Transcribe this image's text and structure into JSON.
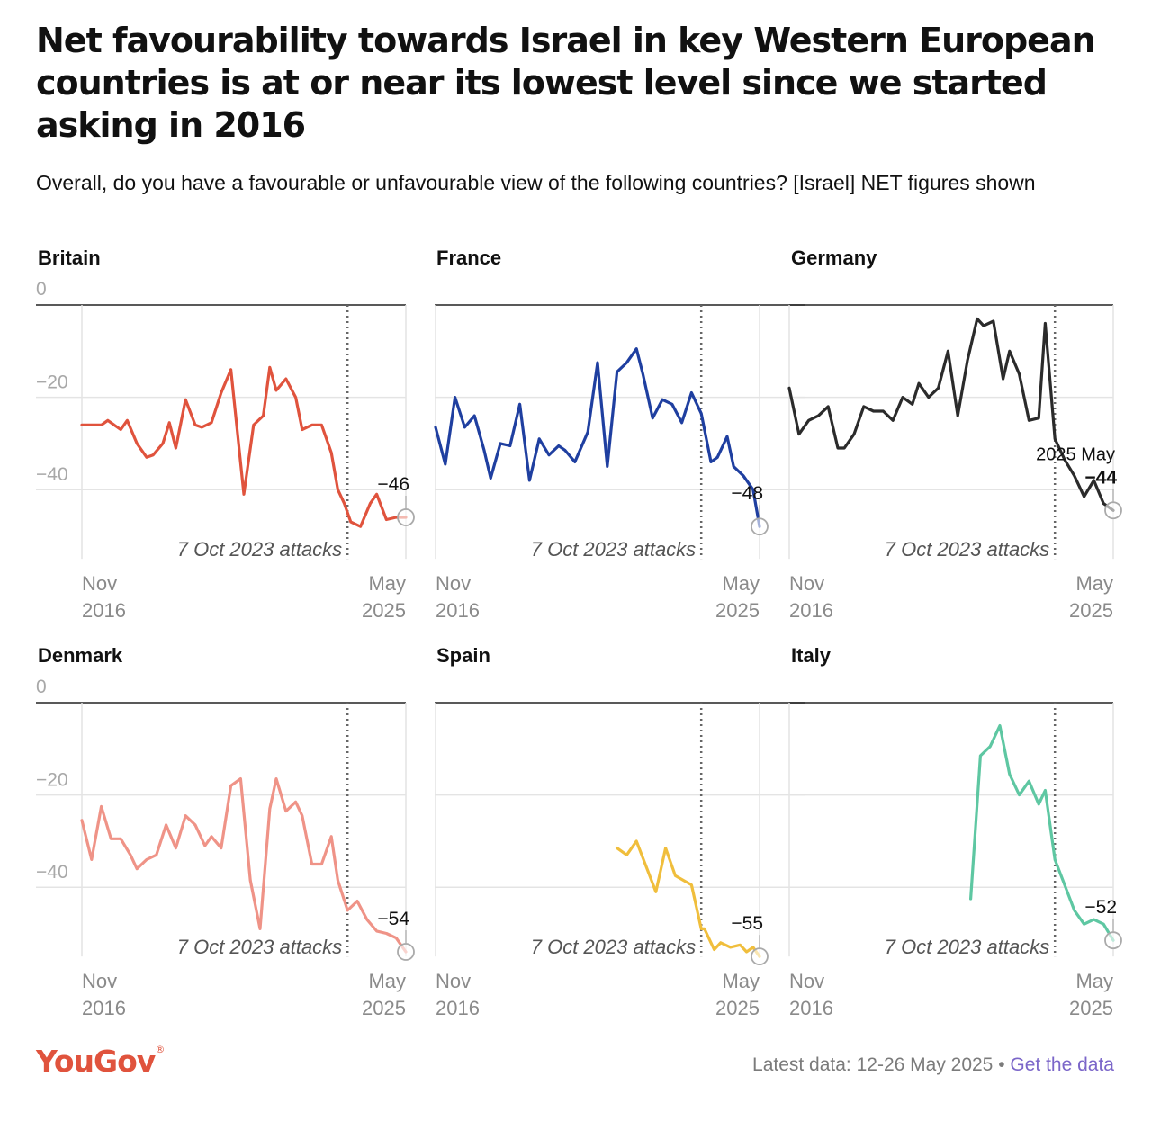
{
  "title": "Net favourability towards Israel in key Western European countries is at or near its lowest level since we started asking in 2016",
  "subtitle": "Overall, do you have a favourable or unfavourable view of the following countries? [Israel] NET figures shown",
  "footer": {
    "logo": "YouGov",
    "latest": "Latest data: 12-26 May 2025",
    "separator": " • ",
    "link": "Get the data"
  },
  "chart_data": [
    {
      "type": "line",
      "title": "Britain",
      "color": "#e0533d",
      "ylim": [
        -55,
        0
      ],
      "yticks": [
        0,
        -20,
        -40
      ],
      "x_start_label": [
        "Nov",
        "2016"
      ],
      "x_end_label": [
        "May",
        "2025"
      ],
      "event_label": "7 Oct 2023 attacks",
      "event_x": 0.82,
      "last_value_label": "−46",
      "show_ytick_labels": true,
      "x": [
        0,
        0.03,
        0.06,
        0.08,
        0.12,
        0.14,
        0.17,
        0.2,
        0.22,
        0.25,
        0.27,
        0.29,
        0.32,
        0.35,
        0.37,
        0.4,
        0.43,
        0.46,
        0.5,
        0.53,
        0.56,
        0.58,
        0.6,
        0.63,
        0.66,
        0.68,
        0.71,
        0.74,
        0.77,
        0.79,
        0.81,
        0.83,
        0.86,
        0.89,
        0.91,
        0.94,
        0.97,
        1.0
      ],
      "values": [
        -26,
        -26,
        -26,
        -25,
        -27,
        -25,
        -30,
        -33,
        -32.5,
        -30,
        -25.5,
        -31,
        -20.5,
        -26,
        -26.5,
        -25.5,
        -19,
        -14,
        -41,
        -26,
        -24,
        -13.5,
        -18.5,
        -16,
        -20,
        -27,
        -26,
        -26,
        -32,
        -40,
        -43,
        -47,
        -48,
        -43,
        -41,
        -46.5,
        -46,
        -46
      ],
      "skip_last": 2
    },
    {
      "type": "line",
      "title": "France",
      "color": "#1f3fa0",
      "ylim": [
        -55,
        0
      ],
      "yticks": [
        0,
        -20,
        -40
      ],
      "x_start_label": [
        "Nov",
        "2016"
      ],
      "x_end_label": [
        "May",
        "2025"
      ],
      "event_label": "7 Oct 2023 attacks",
      "event_x": 0.82,
      "last_value_label": "−48",
      "show_ytick_labels": false,
      "x": [
        0,
        0.03,
        0.06,
        0.09,
        0.12,
        0.15,
        0.17,
        0.2,
        0.23,
        0.26,
        0.29,
        0.32,
        0.35,
        0.38,
        0.4,
        0.43,
        0.47,
        0.5,
        0.53,
        0.56,
        0.59,
        0.62,
        0.64,
        0.67,
        0.7,
        0.73,
        0.76,
        0.79,
        0.82,
        0.85,
        0.87,
        0.9,
        0.92,
        0.95,
        0.98,
        1.0
      ],
      "values": [
        -26.5,
        -34.5,
        -20,
        -26.5,
        -24,
        -31.5,
        -37.5,
        -30,
        -30.5,
        -21.5,
        -38,
        -29,
        -32.5,
        -30.5,
        -31.5,
        -34,
        -27.5,
        -12.5,
        -35,
        -14.5,
        -12.5,
        -9.5,
        -15,
        -24.5,
        -20.5,
        -21.5,
        -25.5,
        -19,
        -23.5,
        -34,
        -33,
        -28.5,
        -35,
        -37,
        -40,
        -48
      ]
    },
    {
      "type": "line",
      "title": "Germany",
      "color": "#2b2b2b",
      "ylim": [
        -55,
        0
      ],
      "yticks": [
        0,
        -20,
        -40
      ],
      "x_start_label": [
        "Nov",
        "2016"
      ],
      "x_end_label": [
        "May",
        "2025"
      ],
      "event_label": "7 Oct 2023 attacks",
      "event_x": 0.82,
      "last_value_label": "−44",
      "last_value_bold": true,
      "secondary_label": "2025 May",
      "show_ytick_labels": false,
      "x": [
        0,
        0.03,
        0.06,
        0.09,
        0.12,
        0.15,
        0.17,
        0.2,
        0.23,
        0.26,
        0.29,
        0.32,
        0.35,
        0.38,
        0.4,
        0.43,
        0.46,
        0.49,
        0.52,
        0.55,
        0.58,
        0.6,
        0.63,
        0.66,
        0.68,
        0.71,
        0.74,
        0.77,
        0.79,
        0.82,
        0.85,
        0.88,
        0.91,
        0.94,
        0.97,
        1.0
      ],
      "values": [
        -18,
        -28,
        -25,
        -24,
        -22,
        -31,
        -31,
        -28,
        -22,
        -23,
        -23,
        -25,
        -20,
        -21.5,
        -17,
        -20,
        -18,
        -10,
        -24,
        -12,
        -3,
        -4.5,
        -3.5,
        -16,
        -10,
        -15,
        -25,
        -24.5,
        -4,
        -29,
        -33.5,
        -37,
        -41.5,
        -38,
        -43,
        -44.5
      ]
    },
    {
      "type": "line",
      "title": "Denmark",
      "color": "#ef9387",
      "ylim": [
        -55,
        0
      ],
      "yticks": [
        0,
        -20,
        -40
      ],
      "x_start_label": [
        "Nov",
        "2016"
      ],
      "x_end_label": [
        "May",
        "2025"
      ],
      "event_label": "7 Oct 2023 attacks",
      "event_x": 0.82,
      "last_value_label": "−54",
      "show_ytick_labels": true,
      "x": [
        0,
        0.03,
        0.06,
        0.09,
        0.12,
        0.15,
        0.17,
        0.2,
        0.23,
        0.26,
        0.29,
        0.32,
        0.35,
        0.38,
        0.4,
        0.43,
        0.46,
        0.49,
        0.52,
        0.55,
        0.58,
        0.6,
        0.63,
        0.66,
        0.68,
        0.71,
        0.74,
        0.77,
        0.79,
        0.82,
        0.85,
        0.88,
        0.91,
        0.94,
        0.97,
        1.0
      ],
      "values": [
        -25.5,
        -34,
        -22.5,
        -29.5,
        -29.5,
        -33,
        -36,
        -34,
        -33,
        -26.5,
        -31.5,
        -24.5,
        -26.5,
        -31,
        -29,
        -31.5,
        -18,
        -16.5,
        -38.5,
        -49,
        -23,
        -16.5,
        -23.5,
        -21.5,
        -24.5,
        -35,
        -35,
        -29,
        -38.5,
        -45,
        -43,
        -47,
        -49.5,
        -50,
        -51,
        -54
      ]
    },
    {
      "type": "line",
      "title": "Spain",
      "color": "#f0be3c",
      "ylim": [
        -55,
        0
      ],
      "yticks": [
        0,
        -20,
        -40
      ],
      "x_start_label": [
        "Nov",
        "2016"
      ],
      "x_end_label": [
        "May",
        "2025"
      ],
      "event_label": "7 Oct 2023 attacks",
      "event_x": 0.82,
      "last_value_label": "−55",
      "show_ytick_labels": false,
      "x": [
        0.56,
        0.59,
        0.62,
        0.68,
        0.71,
        0.74,
        0.79,
        0.82,
        0.83,
        0.86,
        0.88,
        0.91,
        0.94,
        0.96,
        0.98,
        1.0
      ],
      "values": [
        -31.5,
        -33,
        -30,
        -41,
        -31.5,
        -37.5,
        -39.5,
        -49,
        -49,
        -53.5,
        -52,
        -53,
        -52.5,
        -54,
        -53,
        -55
      ]
    },
    {
      "type": "line",
      "title": "Italy",
      "color": "#5ec7a2",
      "ylim": [
        -55,
        0
      ],
      "yticks": [
        0,
        -20,
        -40
      ],
      "x_start_label": [
        "Nov",
        "2016"
      ],
      "x_end_label": [
        "May",
        "2025"
      ],
      "event_label": "7 Oct 2023 attacks",
      "event_x": 0.82,
      "last_value_label": "−52",
      "show_ytick_labels": false,
      "x": [
        0.56,
        0.59,
        0.62,
        0.65,
        0.68,
        0.71,
        0.74,
        0.77,
        0.79,
        0.82,
        0.85,
        0.88,
        0.91,
        0.94,
        0.97,
        1.0
      ],
      "values": [
        -42.5,
        -11.5,
        -9.5,
        -5,
        -15.5,
        -20,
        -17,
        -22,
        -19,
        -34,
        -39.5,
        -45,
        -48,
        -47,
        -48,
        -51.5
      ]
    }
  ]
}
